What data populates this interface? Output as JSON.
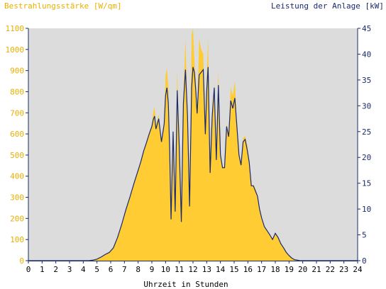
{
  "chart_data": {
    "type": "area",
    "title": "",
    "left_axis_label": "Bestrahlungsstärke [W/qm]",
    "right_axis_label": "Leistung der Anlage [kW]",
    "xlabel": "Uhrzeit in Stunden",
    "xlim": [
      0,
      24
    ],
    "ylim_left": [
      0,
      1100
    ],
    "ylim_right": [
      0,
      45
    ],
    "x_ticks": [
      "0",
      "1",
      "2",
      "3",
      "4",
      "5",
      "6",
      "7",
      "8",
      "9",
      "10",
      "11",
      "12",
      "13",
      "14",
      "15",
      "16",
      "17",
      "18",
      "19",
      "20",
      "21",
      "22",
      "23",
      "24"
    ],
    "y_ticks_left": [
      "0",
      "100",
      "200",
      "300",
      "400",
      "500",
      "600",
      "700",
      "800",
      "900",
      "1000",
      "1100"
    ],
    "y_ticks_right": [
      "0",
      "5",
      "10",
      "15",
      "20",
      "25",
      "30",
      "35",
      "40",
      "45"
    ],
    "grid": false,
    "legend": "none",
    "colors": {
      "background": "#ffffff",
      "plot_background": "#dcdcdc",
      "irradiance_fill": "#ffcc33",
      "power_line": "#1a2a6c",
      "left_axis_text": "#e8b000",
      "right_axis_text": "#1a2a6c",
      "x_axis_text": "#000000"
    },
    "series": [
      {
        "name": "Bestrahlungsstärke [W/qm]",
        "axis": "left",
        "render": "area",
        "x": [
          0,
          4.4,
          4.7,
          5.0,
          5.3,
          5.6,
          5.9,
          6.2,
          6.5,
          6.8,
          7.1,
          7.4,
          7.7,
          8.0,
          8.2,
          8.4,
          8.6,
          8.8,
          9.0,
          9.1,
          9.2,
          9.3,
          9.5,
          9.7,
          9.9,
          10.0,
          10.1,
          10.2,
          10.3,
          10.4,
          10.55,
          10.7,
          10.85,
          11.0,
          11.15,
          11.3,
          11.45,
          11.6,
          11.75,
          11.9,
          12.0,
          12.1,
          12.2,
          12.3,
          12.45,
          12.6,
          12.75,
          12.9,
          13.0,
          13.1,
          13.25,
          13.4,
          13.55,
          13.7,
          13.85,
          14.0,
          14.15,
          14.3,
          14.45,
          14.6,
          14.75,
          14.9,
          15.05,
          15.2,
          15.35,
          15.5,
          15.65,
          15.8,
          15.95,
          16.1,
          16.25,
          16.4,
          16.55,
          16.7,
          16.85,
          17.0,
          17.2,
          17.4,
          17.6,
          17.8,
          18.0,
          18.2,
          18.4,
          18.6,
          18.8,
          19.0,
          19.2,
          19.4,
          19.6,
          19.8,
          20.0,
          20.2,
          20.4,
          24
        ],
        "values": [
          0,
          0,
          3,
          8,
          18,
          30,
          40,
          60,
          110,
          170,
          240,
          300,
          370,
          430,
          470,
          520,
          560,
          600,
          640,
          700,
          730,
          640,
          690,
          560,
          650,
          880,
          910,
          820,
          520,
          200,
          620,
          240,
          900,
          540,
          180,
          780,
          1050,
          700,
          260,
          1070,
          1100,
          950,
          860,
          700,
          1050,
          1000,
          980,
          600,
          860,
          1050,
          420,
          700,
          840,
          480,
          900,
          500,
          450,
          440,
          650,
          600,
          820,
          780,
          850,
          650,
          500,
          450,
          580,
          590,
          550,
          470,
          350,
          360,
          340,
          310,
          250,
          200,
          160,
          140,
          120,
          100,
          130,
          110,
          80,
          60,
          40,
          25,
          12,
          5,
          2,
          0,
          0,
          0,
          0,
          0
        ]
      },
      {
        "name": "Leistung der Anlage [kW]",
        "axis": "right",
        "render": "line",
        "x": [
          0,
          4.4,
          4.7,
          5.0,
          5.3,
          5.6,
          5.9,
          6.2,
          6.5,
          6.8,
          7.1,
          7.4,
          7.7,
          8.0,
          8.2,
          8.4,
          8.6,
          8.8,
          9.0,
          9.1,
          9.2,
          9.3,
          9.5,
          9.7,
          9.9,
          10.0,
          10.1,
          10.2,
          10.3,
          10.4,
          10.55,
          10.7,
          10.85,
          11.0,
          11.15,
          11.3,
          11.45,
          11.6,
          11.75,
          11.9,
          12.0,
          12.1,
          12.2,
          12.3,
          12.45,
          12.6,
          12.75,
          12.9,
          13.0,
          13.1,
          13.25,
          13.4,
          13.55,
          13.7,
          13.85,
          14.0,
          14.15,
          14.3,
          14.45,
          14.6,
          14.75,
          14.9,
          15.05,
          15.2,
          15.35,
          15.5,
          15.65,
          15.8,
          15.95,
          16.1,
          16.25,
          16.4,
          16.55,
          16.7,
          16.85,
          17.0,
          17.2,
          17.4,
          17.6,
          17.8,
          18.0,
          18.2,
          18.4,
          18.6,
          18.8,
          19.0,
          19.2,
          19.4,
          19.6,
          19.8,
          20.0,
          20.2,
          20.4,
          24
        ],
        "values": [
          0,
          0,
          0.1,
          0.3,
          0.7,
          1.2,
          1.6,
          2.5,
          4.5,
          7.0,
          9.8,
          12.3,
          15.0,
          17.5,
          19.2,
          21.2,
          22.8,
          24.5,
          26.0,
          27.3,
          28.0,
          25.5,
          27.5,
          23.0,
          26.5,
          32.0,
          33.5,
          30.5,
          21.5,
          8.0,
          25.0,
          9.5,
          33.0,
          22.0,
          7.5,
          30.5,
          37.0,
          28.0,
          10.5,
          33.5,
          37.5,
          36.5,
          33.0,
          28.5,
          36.0,
          36.5,
          37.0,
          24.5,
          33.0,
          37.5,
          17.0,
          28.0,
          33.5,
          19.5,
          34.0,
          20.5,
          18.0,
          18.0,
          26.0,
          24.0,
          31.0,
          29.5,
          31.5,
          26.0,
          20.5,
          18.5,
          23.0,
          23.5,
          21.5,
          19.0,
          14.5,
          14.5,
          13.5,
          12.5,
          10.0,
          8.3,
          6.6,
          5.8,
          5.0,
          4.1,
          5.3,
          4.5,
          3.3,
          2.5,
          1.6,
          1.0,
          0.5,
          0.2,
          0.1,
          0,
          0,
          0,
          0,
          0
        ]
      }
    ]
  }
}
